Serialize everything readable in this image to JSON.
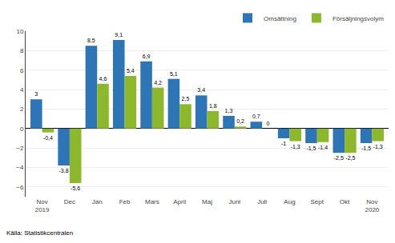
{
  "chart_data": {
    "type": "bar",
    "categories": [
      "Nov\n2019",
      "Dec",
      "Jan",
      "Feb",
      "Mars",
      "April",
      "Maj",
      "Juni",
      "Juli",
      "Aug",
      "Sept",
      "Okt",
      "Nov\n2020"
    ],
    "series": [
      {
        "name": "Omsättning",
        "color": "#2E75B6",
        "values": [
          3.0,
          -3.8,
          8.5,
          9.1,
          6.9,
          5.1,
          3.4,
          1.3,
          0.7,
          -1.0,
          -1.5,
          -2.5,
          -1.5
        ],
        "value_labels": [
          "3",
          "-3,8",
          "8,5",
          "9,1",
          "6,9",
          "5,1",
          "3,4",
          "1,3",
          "0,7",
          "-1",
          "-1,5",
          "-2,5",
          "-1,5"
        ]
      },
      {
        "name": "Försäljningsvolym",
        "color": "#8DB82E",
        "values": [
          -0.4,
          -5.6,
          4.6,
          5.4,
          4.2,
          2.5,
          1.8,
          0.2,
          0.0,
          -1.3,
          -1.4,
          -2.5,
          -1.3
        ],
        "value_labels": [
          "-0,4",
          "-5,6",
          "4,6",
          "5,4",
          "4,2",
          "2,5",
          "1,8",
          "0,2",
          "0",
          "-1,3",
          "-1,4",
          "-2,5",
          "-1,3"
        ]
      }
    ],
    "ylim": [
      -7,
      10
    ],
    "yticks": [
      -6,
      -4,
      -2,
      0,
      2,
      4,
      6,
      8,
      10
    ],
    "grid": true,
    "legend": "upper right",
    "data_labels": true,
    "annotations": [
      "Källa: Statistikcentralen"
    ]
  }
}
